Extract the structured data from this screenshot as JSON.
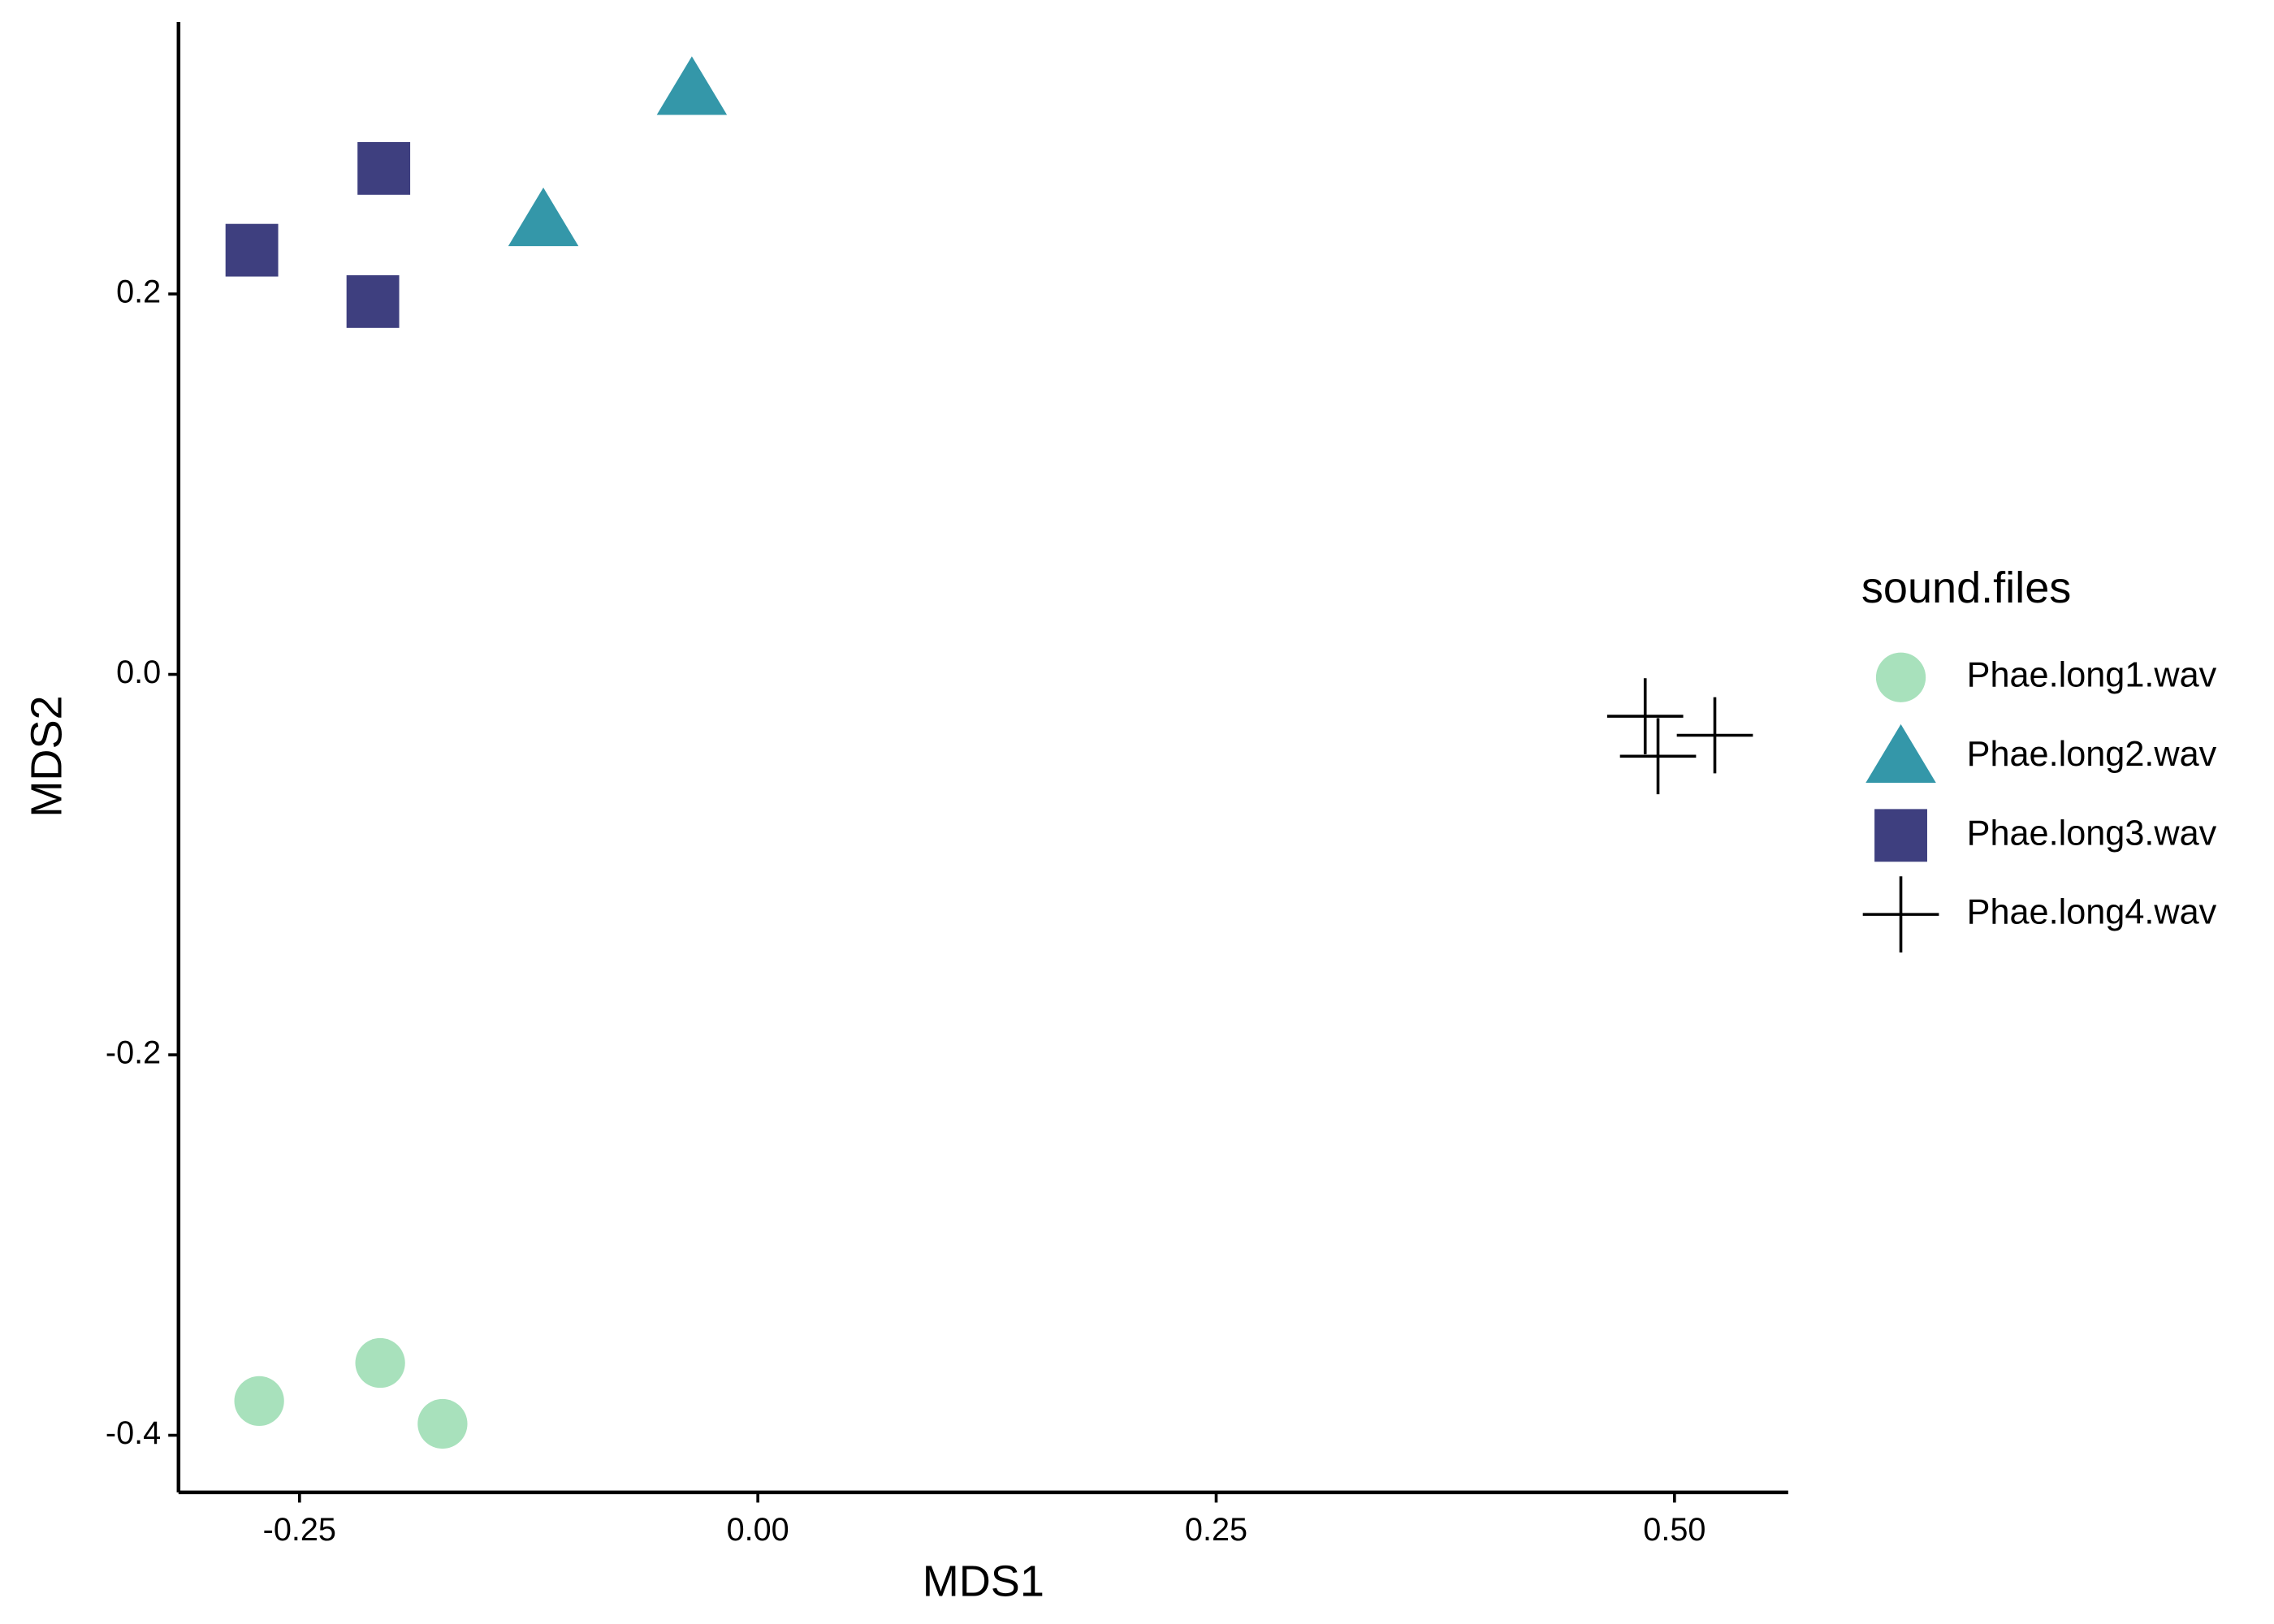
{
  "chart_data": {
    "type": "scatter",
    "x_label": "MDS1",
    "y_label": "MDS2",
    "legend_title": "sound.files",
    "legend": "right",
    "grid": false,
    "xlim": [
      -0.316,
      0.562
    ],
    "ylim": [
      -0.43,
      0.343
    ],
    "xticks": [
      -0.25,
      {
        "value": 0,
        "label": "0.00"
      },
      0.25,
      {
        "value": 0.5,
        "label": "0.50"
      }
    ],
    "yticks": [
      -0.4,
      -0.2,
      {
        "value": 0,
        "label": "0.0"
      },
      0.2
    ],
    "series": [
      {
        "name": "Phae.long1.wav",
        "color": "#a8e1bc",
        "shape": "circle",
        "x": [
          -0.272,
          -0.206,
          -0.172
        ],
        "values": [
          -0.382,
          -0.362,
          -0.394
        ]
      },
      {
        "name": "Phae.long2.wav",
        "color": "#3497a9",
        "shape": "triangle",
        "x": [
          -0.036,
          -0.117
        ],
        "values": [
          0.308,
          0.239
        ]
      },
      {
        "name": "Phae.long3.wav",
        "color": "#3e3f7f",
        "shape": "square",
        "x": [
          -0.276,
          -0.204,
          -0.21
        ],
        "values": [
          0.223,
          0.266,
          0.196
        ]
      },
      {
        "name": "Phae.long4.wav",
        "color": "#000000",
        "shape": "cross",
        "x": [
          0.484,
          0.491,
          0.522
        ],
        "values": [
          -0.022,
          -0.043,
          -0.032
        ]
      }
    ]
  }
}
